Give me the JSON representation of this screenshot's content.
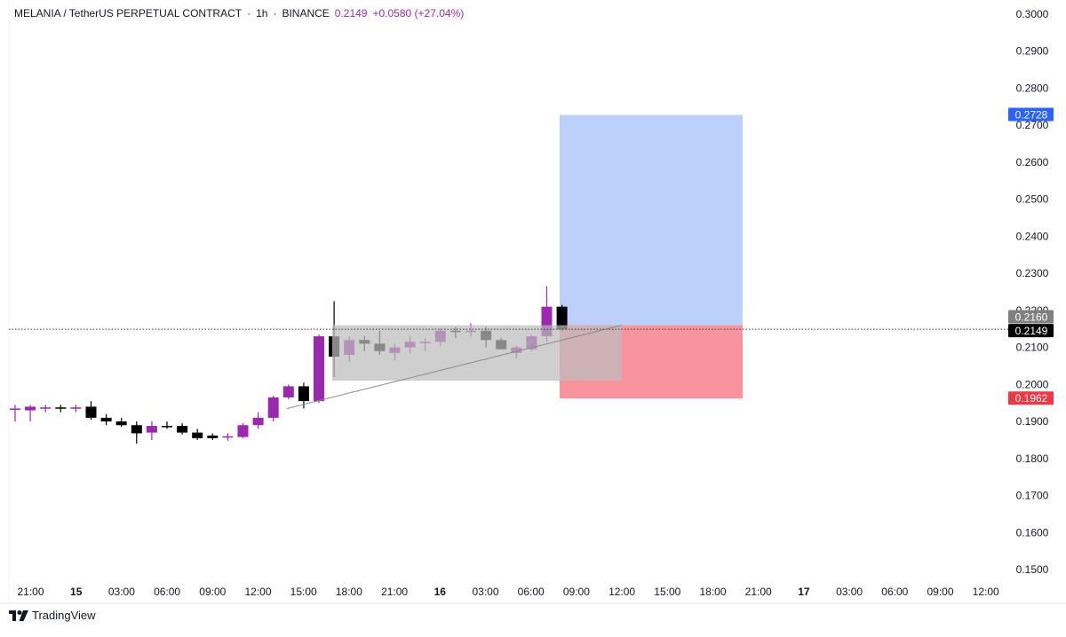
{
  "header": {
    "symbol": "MELANIA / TetherUS PERPETUAL CONTRACT",
    "interval": "1h",
    "exchange": "BINANCE",
    "price": "0.2149",
    "change": "+0.0580 (+27.04%)"
  },
  "footer": {
    "brand": "TradingView"
  },
  "colors": {
    "up": "#9c27b0",
    "down": "#000000",
    "target_zone": "#bcd0fb",
    "stop_zone": "#f8949e",
    "range_box": "#bdbdbd",
    "target_label": "#2962ff",
    "stop_label": "#f23645",
    "current_label": "#000000",
    "marker_label": "#808080"
  },
  "chart_data": {
    "type": "candlestick",
    "ylim": [
      0.145,
      0.305
    ],
    "y_ticks": [
      "0.3000",
      "0.2900",
      "0.2800",
      "0.2700",
      "0.2600",
      "0.2500",
      "0.2400",
      "0.2300",
      "0.2200",
      "0.2100",
      "0.2000",
      "0.1900",
      "0.1800",
      "0.1700",
      "0.1600",
      "0.1500"
    ],
    "x_tick_labels": [
      "21:00",
      "15",
      "03:00",
      "06:00",
      "09:00",
      "12:00",
      "15:00",
      "18:00",
      "21:00",
      "16",
      "03:00",
      "06:00",
      "09:00",
      "12:00",
      "15:00",
      "18:00",
      "21:00",
      "17",
      "03:00",
      "06:00",
      "09:00",
      "12:00"
    ],
    "bold_ticks": [
      "15",
      "16",
      "17"
    ],
    "candles": [
      {
        "o": 0.1935,
        "h": 0.1945,
        "l": 0.19,
        "c": 0.1935
      },
      {
        "o": 0.193,
        "h": 0.1945,
        "l": 0.19,
        "c": 0.194
      },
      {
        "o": 0.1935,
        "h": 0.1945,
        "l": 0.1925,
        "c": 0.1938
      },
      {
        "o": 0.1938,
        "h": 0.1945,
        "l": 0.1925,
        "c": 0.1935
      },
      {
        "o": 0.1935,
        "h": 0.1945,
        "l": 0.1925,
        "c": 0.1938
      },
      {
        "o": 0.194,
        "h": 0.1955,
        "l": 0.1905,
        "c": 0.191
      },
      {
        "o": 0.191,
        "h": 0.192,
        "l": 0.189,
        "c": 0.19
      },
      {
        "o": 0.19,
        "h": 0.191,
        "l": 0.1885,
        "c": 0.189
      },
      {
        "o": 0.189,
        "h": 0.19,
        "l": 0.184,
        "c": 0.1868
      },
      {
        "o": 0.187,
        "h": 0.19,
        "l": 0.185,
        "c": 0.1888
      },
      {
        "o": 0.1888,
        "h": 0.19,
        "l": 0.188,
        "c": 0.1887
      },
      {
        "o": 0.1888,
        "h": 0.1895,
        "l": 0.1865,
        "c": 0.187
      },
      {
        "o": 0.187,
        "h": 0.188,
        "l": 0.185,
        "c": 0.1855
      },
      {
        "o": 0.1862,
        "h": 0.1868,
        "l": 0.185,
        "c": 0.1855
      },
      {
        "o": 0.1858,
        "h": 0.1868,
        "l": 0.1848,
        "c": 0.186
      },
      {
        "o": 0.1858,
        "h": 0.1895,
        "l": 0.1855,
        "c": 0.189
      },
      {
        "o": 0.189,
        "h": 0.1925,
        "l": 0.188,
        "c": 0.191
      },
      {
        "o": 0.191,
        "h": 0.197,
        "l": 0.19,
        "c": 0.1965
      },
      {
        "o": 0.1965,
        "h": 0.2,
        "l": 0.196,
        "c": 0.1995
      },
      {
        "o": 0.1995,
        "h": 0.2005,
        "l": 0.1935,
        "c": 0.1955
      },
      {
        "o": 0.1955,
        "h": 0.2135,
        "l": 0.195,
        "c": 0.213
      },
      {
        "o": 0.213,
        "h": 0.2225,
        "l": 0.202,
        "c": 0.2075
      },
      {
        "o": 0.208,
        "h": 0.213,
        "l": 0.206,
        "c": 0.212
      },
      {
        "o": 0.212,
        "h": 0.213,
        "l": 0.209,
        "c": 0.211
      },
      {
        "o": 0.211,
        "h": 0.2145,
        "l": 0.208,
        "c": 0.209
      },
      {
        "o": 0.2085,
        "h": 0.211,
        "l": 0.2065,
        "c": 0.21
      },
      {
        "o": 0.21,
        "h": 0.213,
        "l": 0.2085,
        "c": 0.2115
      },
      {
        "o": 0.2115,
        "h": 0.2125,
        "l": 0.209,
        "c": 0.2115
      },
      {
        "o": 0.2115,
        "h": 0.215,
        "l": 0.2105,
        "c": 0.2145
      },
      {
        "o": 0.2145,
        "h": 0.2155,
        "l": 0.2125,
        "c": 0.2143
      },
      {
        "o": 0.2145,
        "h": 0.2165,
        "l": 0.213,
        "c": 0.2145
      },
      {
        "o": 0.2145,
        "h": 0.2155,
        "l": 0.21,
        "c": 0.212
      },
      {
        "o": 0.212,
        "h": 0.2125,
        "l": 0.2095,
        "c": 0.2095
      },
      {
        "o": 0.2085,
        "h": 0.2105,
        "l": 0.207,
        "c": 0.21
      },
      {
        "o": 0.2095,
        "h": 0.2135,
        "l": 0.209,
        "c": 0.213
      },
      {
        "o": 0.213,
        "h": 0.2265,
        "l": 0.2115,
        "c": 0.221
      },
      {
        "o": 0.221,
        "h": 0.2215,
        "l": 0.2145,
        "c": 0.2149
      }
    ],
    "range_box": {
      "top": 0.216,
      "bottom": 0.201
    },
    "trend_line": {
      "from": 0.1935,
      "to": 0.216
    },
    "position": {
      "entry": 0.216,
      "target": 0.2728,
      "stop": 0.1962
    },
    "price_labels": {
      "target": "0.2728",
      "marker": "0.2160",
      "current": "0.2149",
      "stop": "0.1962"
    }
  }
}
